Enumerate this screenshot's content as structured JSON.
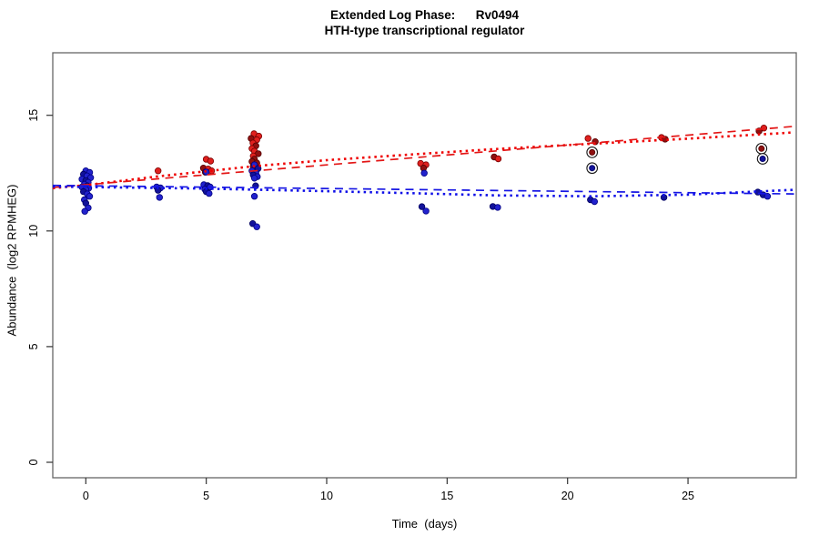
{
  "figure": {
    "title_line1": "Extended Log Phase:      Rv0494",
    "title_line2": "HTH-type transcriptional regulator",
    "x_axis_label": "Time  (days)",
    "y_axis_label": "Abundance  (log2 RPMHEG)"
  },
  "chart_data": {
    "type": "scatter",
    "title": "Extended Log Phase: Rv0494",
    "subtitle": "HTH-type transcriptional regulator",
    "xlabel": "Time (days)",
    "ylabel": "Abundance (log2 RPMHEG)",
    "x_ticks": [
      0,
      5,
      10,
      15,
      20,
      25
    ],
    "y_ticks": [
      0,
      5,
      10,
      15
    ],
    "xlim": [
      -1.37,
      29.5
    ],
    "ylim": [
      -0.67,
      17.7
    ],
    "grid": false,
    "legend": "none",
    "series": [
      {
        "name": "red",
        "fill": "#e0201e",
        "fill_dark": "#8f1010",
        "stroke": "#7a0000",
        "stroke_dark": "#550000",
        "points": [
          [
            0.05,
            12.05,
            1
          ],
          [
            -0.1,
            11.9,
            1
          ],
          [
            3.0,
            12.6,
            0
          ],
          [
            3.02,
            11.84,
            1
          ],
          [
            5.0,
            13.1,
            0
          ],
          [
            5.18,
            13.02,
            0
          ],
          [
            4.88,
            12.72,
            1
          ],
          [
            5.08,
            12.68,
            0
          ],
          [
            5.22,
            12.6,
            0
          ],
          [
            4.96,
            12.54,
            1
          ],
          [
            6.98,
            14.2,
            0
          ],
          [
            7.18,
            14.1,
            0
          ],
          [
            6.86,
            14.0,
            1
          ],
          [
            7.1,
            13.94,
            0
          ],
          [
            6.94,
            13.8,
            0
          ],
          [
            7.06,
            13.68,
            1
          ],
          [
            6.9,
            13.56,
            0
          ],
          [
            7.0,
            13.45,
            0
          ],
          [
            7.16,
            13.34,
            1
          ],
          [
            6.95,
            13.24,
            0
          ],
          [
            7.0,
            13.1,
            1
          ],
          [
            6.9,
            13.0,
            1
          ],
          [
            7.1,
            12.94,
            1
          ],
          [
            6.95,
            12.8,
            1
          ],
          [
            7.06,
            12.7,
            1
          ],
          [
            13.9,
            12.92,
            0
          ],
          [
            14.12,
            12.86,
            0
          ],
          [
            14.02,
            12.72,
            1
          ],
          [
            16.95,
            13.2,
            1
          ],
          [
            17.12,
            13.12,
            0
          ],
          [
            20.85,
            14.0,
            0
          ],
          [
            21.15,
            13.86,
            1
          ],
          [
            23.9,
            14.04,
            0
          ],
          [
            24.05,
            13.97,
            1
          ],
          [
            28.15,
            14.45,
            0
          ],
          [
            27.95,
            14.32,
            1
          ]
        ]
      },
      {
        "name": "blue",
        "fill": "#2222cd",
        "fill_dark": "#12129a",
        "stroke": "#000080",
        "stroke_dark": "#000060",
        "points": [
          [
            0.0,
            12.6,
            0
          ],
          [
            0.16,
            12.53,
            0
          ],
          [
            -0.1,
            12.45,
            1
          ],
          [
            0.05,
            12.38,
            0
          ],
          [
            0.2,
            12.3,
            0
          ],
          [
            -0.16,
            12.24,
            0
          ],
          [
            0.0,
            12.18,
            1
          ],
          [
            0.1,
            12.1,
            0
          ],
          [
            -0.06,
            12.02,
            0
          ],
          [
            0.06,
            11.95,
            1
          ],
          [
            -0.16,
            11.9,
            0
          ],
          [
            0.12,
            11.85,
            0
          ],
          [
            0.0,
            11.8,
            0
          ],
          [
            -0.1,
            11.7,
            1
          ],
          [
            0.06,
            11.6,
            0
          ],
          [
            0.16,
            11.5,
            0
          ],
          [
            -0.06,
            11.35,
            0
          ],
          [
            0.0,
            11.2,
            1
          ],
          [
            0.1,
            11.0,
            0
          ],
          [
            -0.04,
            10.85,
            0
          ],
          [
            2.94,
            11.9,
            0
          ],
          [
            3.1,
            11.86,
            0
          ],
          [
            3.0,
            11.76,
            1
          ],
          [
            3.06,
            11.45,
            0
          ],
          [
            5.0,
            12.55,
            0
          ],
          [
            4.9,
            12.0,
            0
          ],
          [
            5.06,
            11.96,
            1
          ],
          [
            5.16,
            11.9,
            0
          ],
          [
            4.94,
            11.8,
            0
          ],
          [
            5.0,
            11.7,
            1
          ],
          [
            5.12,
            11.62,
            0
          ],
          [
            7.0,
            12.86,
            0
          ],
          [
            7.15,
            12.7,
            1
          ],
          [
            6.9,
            12.6,
            0
          ],
          [
            7.06,
            12.5,
            0
          ],
          [
            6.95,
            12.42,
            1
          ],
          [
            7.12,
            12.35,
            0
          ],
          [
            7.0,
            12.28,
            0
          ],
          [
            7.05,
            11.95,
            1
          ],
          [
            7.0,
            11.5,
            0
          ],
          [
            6.93,
            10.32,
            1
          ],
          [
            7.1,
            10.18,
            0
          ],
          [
            14.05,
            12.5,
            0
          ],
          [
            13.95,
            11.05,
            1
          ],
          [
            14.12,
            10.86,
            0
          ],
          [
            16.9,
            11.06,
            1
          ],
          [
            17.1,
            11.02,
            0
          ],
          [
            20.95,
            11.35,
            1
          ],
          [
            21.12,
            11.27,
            0
          ],
          [
            24.0,
            11.45,
            1
          ],
          [
            27.9,
            11.68,
            1
          ],
          [
            28.12,
            11.56,
            1
          ],
          [
            28.3,
            11.5,
            0
          ]
        ]
      }
    ],
    "circled_points": [
      {
        "day": 21.02,
        "value": 13.4,
        "color": "red"
      },
      {
        "day": 21.02,
        "value": 12.72,
        "color": "blue"
      },
      {
        "day": 28.05,
        "value": 13.56,
        "color": "red"
      },
      {
        "day": 28.1,
        "value": 13.12,
        "color": "blue"
      }
    ],
    "trend_lines": [
      {
        "name": "red-loess-fit",
        "color": "#ef0000",
        "width": 2.6,
        "dash": "2.5 4.2",
        "points": [
          [
            -1.37,
            11.85
          ],
          [
            0,
            11.98
          ],
          [
            3,
            12.36
          ],
          [
            5,
            12.58
          ],
          [
            7,
            12.8
          ],
          [
            10,
            13.06
          ],
          [
            14,
            13.34
          ],
          [
            17,
            13.54
          ],
          [
            21,
            13.77
          ],
          [
            25,
            13.99
          ],
          [
            29.4,
            14.26
          ]
        ]
      },
      {
        "name": "red-linear-fit",
        "color": "#e31616",
        "width": 1.7,
        "dash": "9 6.5",
        "points": [
          [
            -1.37,
            11.88
          ],
          [
            29.4,
            14.52
          ]
        ]
      },
      {
        "name": "blue-linear-fit",
        "color": "#1616e3",
        "width": 1.7,
        "dash": "9 6.5",
        "points": [
          [
            -1.37,
            11.97
          ],
          [
            29.4,
            11.6
          ]
        ]
      },
      {
        "name": "blue-loess-fit",
        "color": "#0f0fe8",
        "width": 2.6,
        "dash": "2.5 4.2",
        "points": [
          [
            -1.37,
            11.92
          ],
          [
            0,
            11.9
          ],
          [
            5,
            11.83
          ],
          [
            10,
            11.72
          ],
          [
            14,
            11.62
          ],
          [
            17,
            11.54
          ],
          [
            21,
            11.5
          ],
          [
            25,
            11.57
          ],
          [
            29.4,
            11.78
          ]
        ]
      }
    ]
  }
}
